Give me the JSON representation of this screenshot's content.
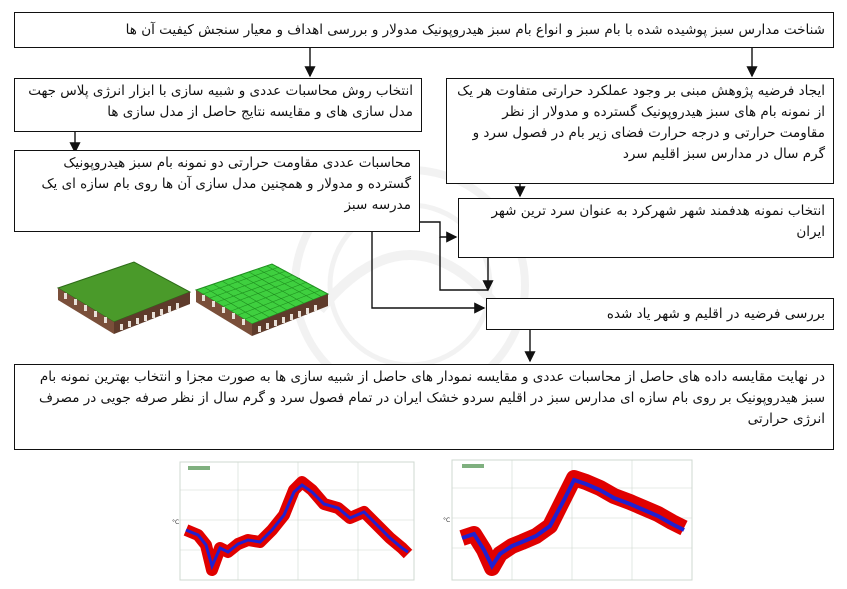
{
  "boxes": {
    "top": "شناخت مدارس سبز  پوشیده شده با بام سبز و انواع بام سبز هیدروپونیک مدولار و بررسی   اهداف و معیار سنجش کیفیت آن ها",
    "left1": "انتخاب روش محاسبات عددی و شبیه سازی با ابزار انرژی پلاس جهت مدل سازی های و مقایسه  نتایج حاصل از مدل سازی ها",
    "right1": "ایجاد فرضیه پژوهش  مبنی بر وجود عملکرد حرارتی متفاوت هر یک از نمونه بام های سبز هیدروپونیک گسترده و مدولار از نظر مقاومت حرارتی و درجه حرارت فضای زیر بام در فصول سرد و گرم سال در مدارس سبز اقلیم سرد",
    "left2": "محاسبات عددی مقاومت حرارتی دو نمونه بام سبز هیدروپونیک گسترده و مدولار و همچنین مدل سازی آن ها  روی بام سازه ای یک مدرسه سبز",
    "right2": "انتخاب  نمونه هدفمند شهر شهرکرد به عنوان سرد ترین شهر ایران",
    "review": "بررسی فرضیه در اقلیم و شهر یاد شده",
    "final": "در نهایت مقایسه داده های حاصل از محاسبات عددی و مقایسه نمودار های حاصل از شبیه سازی ها به صورت مجزا و انتخاب بهترین نمونه بام سبز هیدروپونیک  بر روی بام سازه ای مدارس سبز در اقلیم سردو خشک ایران  در تمام فصول سرد و گرم سال از نظر صرفه جویی در مصرف انرژی حرارتی"
  },
  "colors": {
    "roof_extensive": "#4a9a2a",
    "roof_modular": "#3fcf3f",
    "slab": "#7a4f3a",
    "plot_band": "#e00000",
    "plot_line": "#2020d0",
    "plot_grid": "#cfd8d0"
  }
}
